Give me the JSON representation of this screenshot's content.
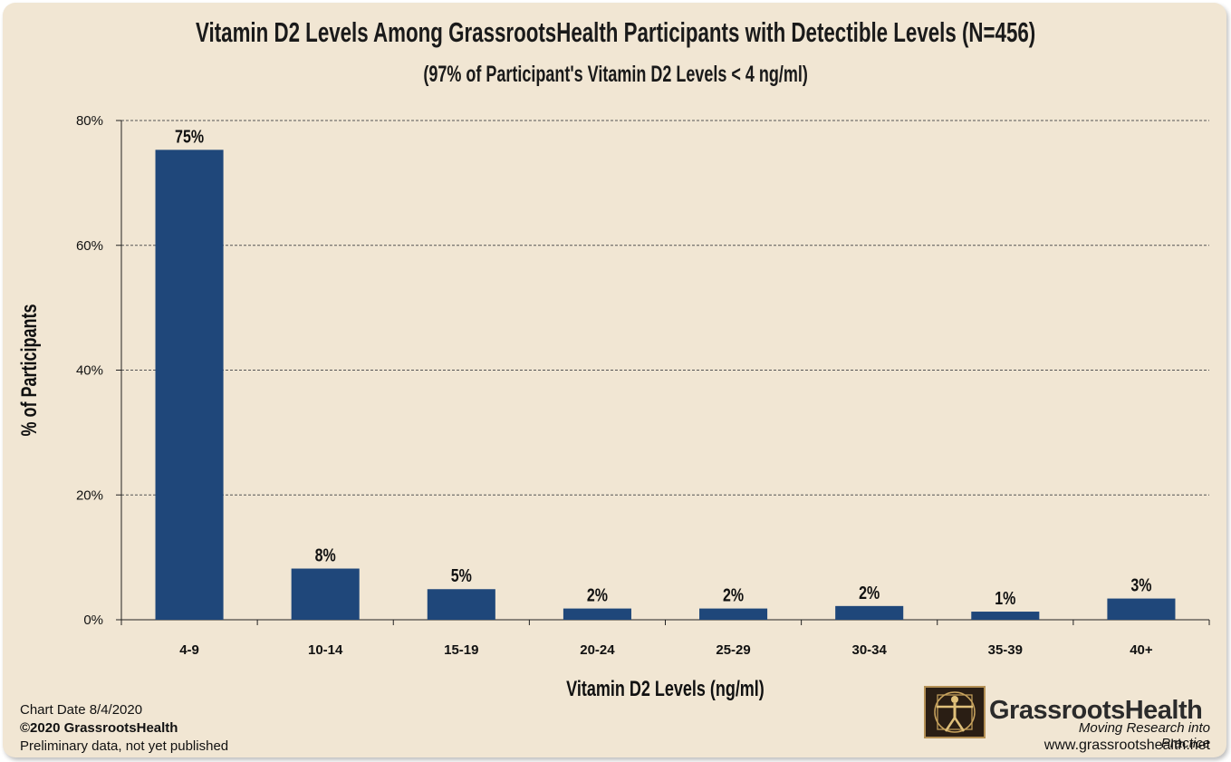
{
  "chart_data": {
    "type": "bar",
    "title": "Vitamin D2 Levels Among GrassrootsHealth Participants with Detectible Levels (N=456)",
    "subtitle": "(97% of Participant's Vitamin D2 Levels < 4 ng/ml)",
    "xlabel": "Vitamin D2 Levels (ng/ml)",
    "ylabel": "% of Participants",
    "categories": [
      "4-9",
      "10-14",
      "15-19",
      "20-24",
      "25-29",
      "30-34",
      "35-39",
      "40+"
    ],
    "values": [
      75.3,
      8.2,
      4.9,
      1.8,
      1.8,
      2.2,
      1.3,
      3.4
    ],
    "data_labels": [
      "75%",
      "8%",
      "5%",
      "2%",
      "2%",
      "2%",
      "1%",
      "3%"
    ],
    "ylim": [
      0,
      80
    ],
    "yticks": [
      0,
      20,
      40,
      60,
      80
    ],
    "ytick_labels": [
      "0%",
      "20%",
      "40%",
      "60%",
      "80%"
    ],
    "grid": true,
    "legend": "none",
    "bar_color": "#1f477a"
  },
  "footer": {
    "chart_date": "Chart Date 8/4/2020",
    "copyright": "©2020 GrassrootsHealth",
    "note": "Preliminary data, not yet published"
  },
  "branding": {
    "name": "GrassrootsHealth",
    "tagline": "Moving Research into Practice",
    "url": "www.grassrootshealth.net",
    "logo_icon": "vitruvian-man-icon"
  },
  "colors": {
    "background": "#f1e6d3",
    "bar": "#1f477a",
    "grid": "#555555"
  }
}
